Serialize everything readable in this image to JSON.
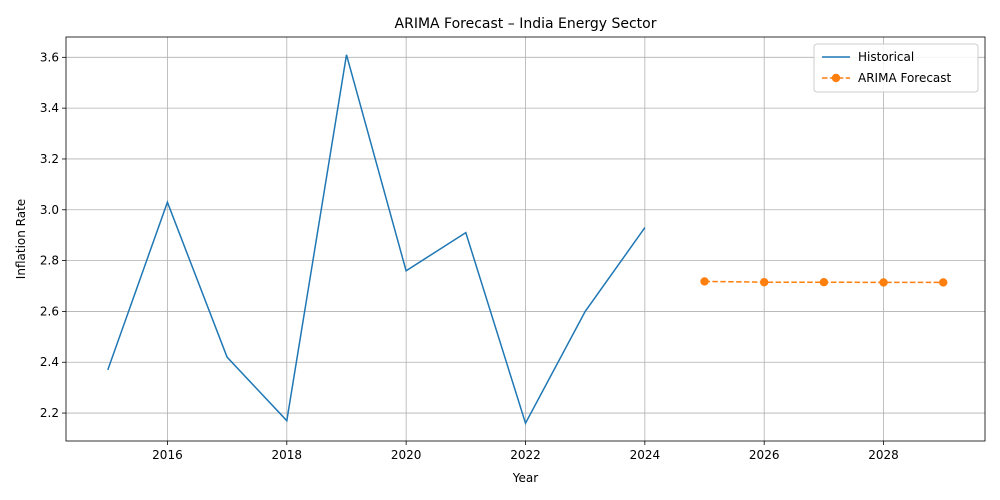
{
  "chart_data": {
    "type": "line",
    "title": "ARIMA Forecast – India Energy Sector",
    "xlabel": "Year",
    "ylabel": "Inflation Rate",
    "xlim": [
      2014.3,
      2029.7
    ],
    "ylim": [
      2.09,
      3.68
    ],
    "xticks": [
      2016,
      2018,
      2020,
      2022,
      2024,
      2026,
      2028
    ],
    "yticks": [
      2.2,
      2.4,
      2.6,
      2.8,
      3.0,
      3.2,
      3.4,
      3.6
    ],
    "grid": true,
    "legend_position": "top-right",
    "series": [
      {
        "name": "Historical",
        "color": "#1f77b4",
        "style": "solid",
        "marker": "none",
        "x": [
          2015,
          2016,
          2017,
          2018,
          2019,
          2020,
          2021,
          2022,
          2023,
          2024
        ],
        "y": [
          2.37,
          3.03,
          2.42,
          2.17,
          3.61,
          2.76,
          2.91,
          2.16,
          2.6,
          2.93
        ]
      },
      {
        "name": "ARIMA Forecast",
        "color": "#ff7f0e",
        "style": "dashed",
        "marker": "circle",
        "x": [
          2025,
          2026,
          2027,
          2028,
          2029
        ],
        "y": [
          2.718,
          2.715,
          2.715,
          2.714,
          2.714
        ]
      }
    ]
  }
}
